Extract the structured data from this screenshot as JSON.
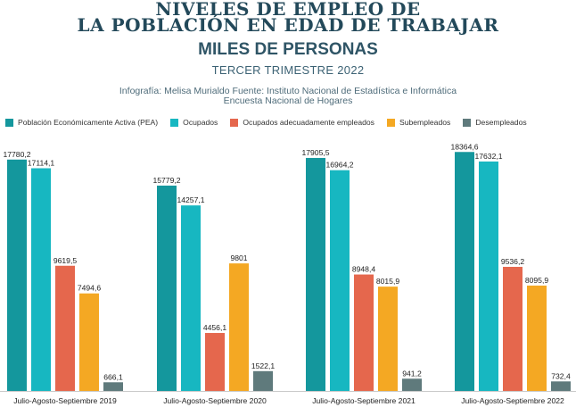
{
  "header": {
    "title_line1": "NIVELES DE EMPLEO DE",
    "title_line2": "LA POBLACIÓN EN EDAD DE TRABAJAR",
    "subtitle": "MILES DE PERSONAS",
    "period": "TERCER TRIMESTRE 2022",
    "credit_line1": "Infografía: Melisa Murialdo Fuente: Instituto Nacional de Estadística e Informática",
    "credit_line2": "Encuesta Nacional de Hogares"
  },
  "colors": {
    "pea": "#14979d",
    "ocupados": "#17b7c1",
    "adecuados": "#e5674d",
    "subempleados": "#f4a823",
    "desempleados": "#5f7a7c"
  },
  "chart_data": {
    "type": "bar",
    "categories": [
      "Julio-Agosto-Septiembre 2019",
      "Julio-Agosto-Septiembre 2020",
      "Julio-Agosto-Septiembre 2021",
      "Julio-Agosto-Septiembre 2022"
    ],
    "series": [
      {
        "name": "Población Económicamente Activa (PEA)",
        "color_key": "pea",
        "values": [
          17780.2,
          15779.2,
          17905.5,
          18364.6
        ],
        "labels": [
          "17780,2",
          "15779,2",
          "17905,5",
          "18364,6"
        ]
      },
      {
        "name": "Ocupados",
        "color_key": "ocupados",
        "values": [
          17114.1,
          14257.1,
          16964.2,
          17632.1
        ],
        "labels": [
          "17114,1",
          "14257,1",
          "16964,2",
          "17632,1"
        ]
      },
      {
        "name": "Ocupados adecuadamente empleados",
        "color_key": "adecuados",
        "values": [
          9619.5,
          4456.1,
          8948.4,
          9536.2
        ],
        "labels": [
          "9619,5",
          "4456,1",
          "8948,4",
          "9536,2"
        ]
      },
      {
        "name": "Subempleados",
        "color_key": "subempleados",
        "values": [
          7494.6,
          9801,
          8015.9,
          8095.9
        ],
        "labels": [
          "7494,6",
          "9801",
          "8015,9",
          "8095,9"
        ]
      },
      {
        "name": "Desempleados",
        "color_key": "desempleados",
        "values": [
          666.1,
          1522.1,
          941.2,
          732.4
        ],
        "labels": [
          "666,1",
          "1522,1",
          "941,2",
          "732,4"
        ]
      }
    ],
    "ylim": [
      0,
      19000
    ],
    "grid": false,
    "legend_position": "top"
  }
}
